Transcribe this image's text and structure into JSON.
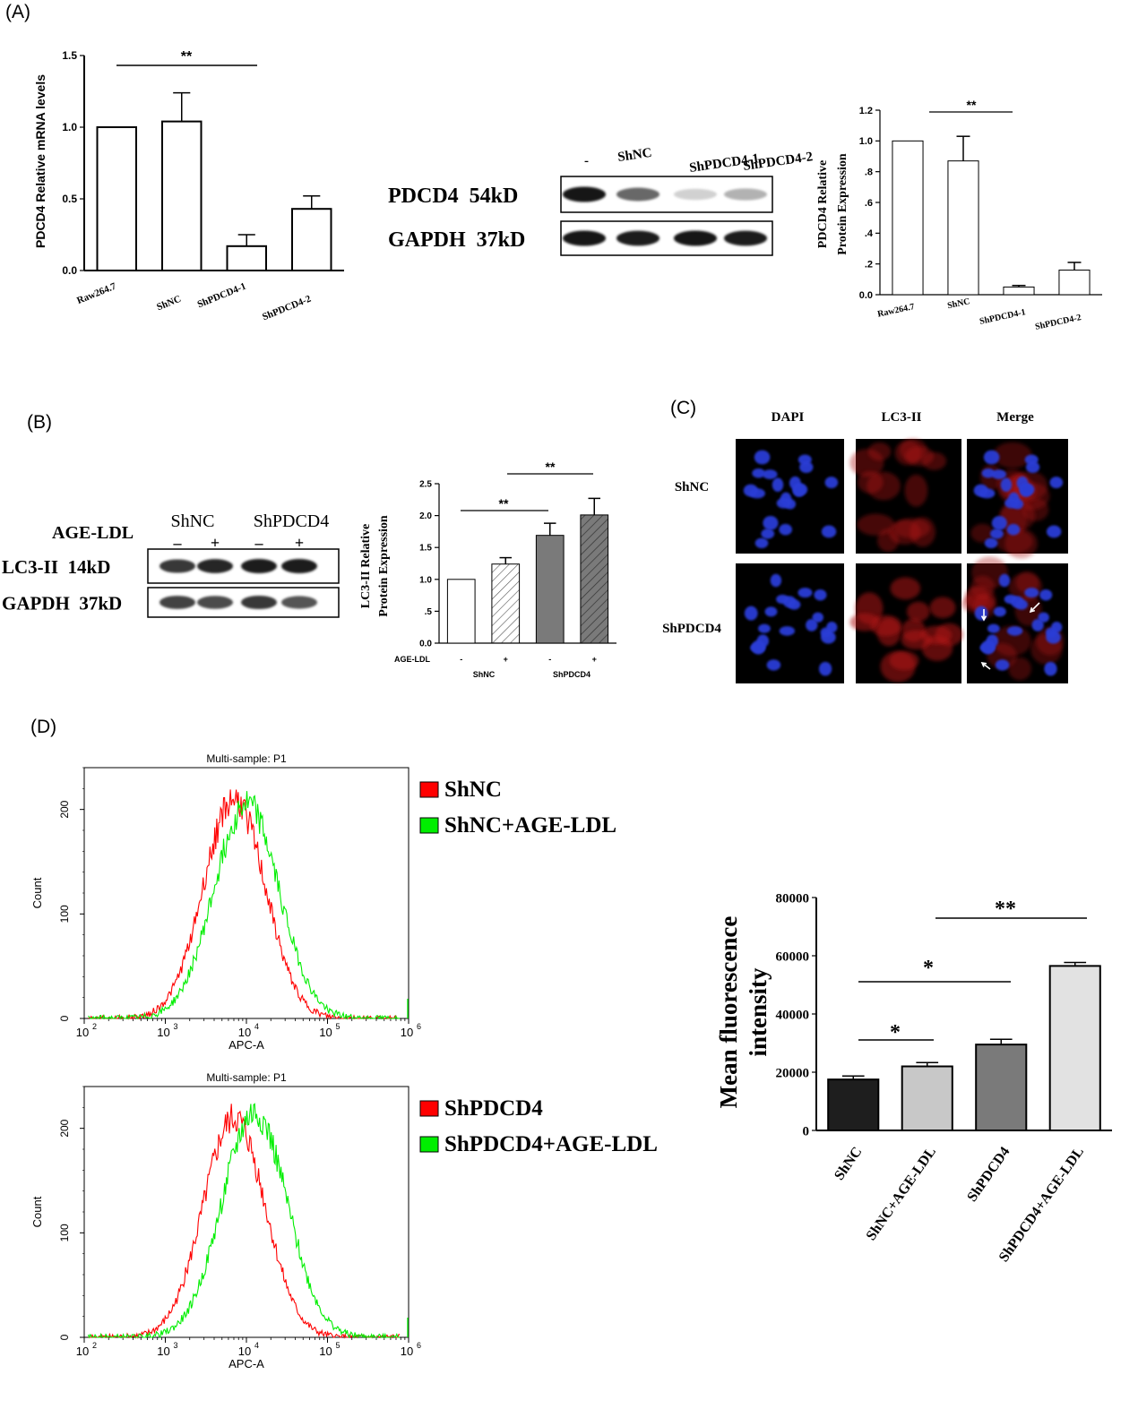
{
  "panels": {
    "A": "(A)",
    "B": "(B)",
    "C": "(C)",
    "D": "(D)"
  },
  "colors": {
    "flow_red": "#ff0000",
    "flow_green": "#00ee00",
    "dapi_blue": "#2a3cd6",
    "lc3_red": "#b01818",
    "bar_dark": "#1e1e1e",
    "bar_light": "#c8c8c8",
    "bar_mid": "#7a7a7a",
    "bar_lightest": "#e2e2e2"
  },
  "blotA": {
    "lanes": [
      "-",
      "ShNC",
      "ShPDCD4-1",
      "ShPDCD4-2"
    ],
    "rows": [
      {
        "label": "PDCD4  54kD",
        "intensity": [
          1.0,
          0.6,
          0.1,
          0.25
        ]
      },
      {
        "label": "GAPDH  37kD",
        "intensity": [
          1.0,
          0.95,
          1.0,
          0.95
        ]
      }
    ]
  },
  "blotB": {
    "treatment_label": "AGE-LDL",
    "groups": [
      "ShNC",
      "ShPDCD4"
    ],
    "signs": [
      "–",
      "+",
      "–",
      "+"
    ],
    "rows": [
      {
        "label": "LC3-II  14kD",
        "intensity": [
          0.85,
          0.95,
          1.0,
          1.0
        ]
      },
      {
        "label": "GAPDH  37kD",
        "intensity": [
          0.8,
          0.75,
          0.85,
          0.7
        ]
      }
    ]
  },
  "micro": {
    "columns": [
      "DAPI",
      "LC3-II",
      "Merge"
    ],
    "rows": [
      "ShNC",
      "ShPDCD4"
    ]
  },
  "flow": {
    "legend1": [
      "ShNC",
      "ShNC+AGE-LDL"
    ],
    "legend2": [
      "ShPDCD4",
      "ShPDCD4+AGE-LDL"
    ]
  },
  "chart_data": [
    {
      "type": "bar",
      "categories": [
        "Raw264.7",
        "ShNC",
        "ShPDCD4-1",
        "ShPDCD4-2"
      ],
      "values": [
        1.0,
        1.04,
        0.17,
        0.43
      ],
      "errors": [
        0,
        0.2,
        0.08,
        0.09
      ],
      "ylabel": "PDCD4  Relative mRNA levels",
      "ylim": [
        0,
        1.5
      ],
      "yticks": [
        "0.0",
        "0.5",
        "1.0",
        "1.5"
      ],
      "sig": "**"
    },
    {
      "type": "bar",
      "categories": [
        "Raw264.7",
        "ShNC",
        "ShPDCD4-1",
        "ShPDCD4-2"
      ],
      "values": [
        1.0,
        0.87,
        0.05,
        0.16
      ],
      "errors": [
        0,
        0.16,
        0.01,
        0.05
      ],
      "ylabel": [
        "PDCD4 Relative",
        "Protein Expression"
      ],
      "ylim": [
        0,
        1.2
      ],
      "yticks": [
        "0.0",
        ".2",
        ".4",
        ".6",
        ".8",
        "1.0",
        "1.2"
      ],
      "sig": "**"
    },
    {
      "type": "bar",
      "categories": [
        "-",
        "+",
        "-",
        "+"
      ],
      "groups": [
        "ShNC",
        "ShPDCD4"
      ],
      "xlabel": "AGE-LDL",
      "values": [
        1.0,
        1.24,
        1.69,
        2.01
      ],
      "errors": [
        0,
        0.1,
        0.19,
        0.26
      ],
      "ylabel": [
        "LC3-II Relative",
        "Protein Expression"
      ],
      "ylim": [
        0,
        2.5
      ],
      "yticks": [
        "0.0",
        ".5",
        "1.0",
        "1.5",
        "2.0",
        "2.5"
      ],
      "sig": [
        "**",
        "**"
      ]
    },
    {
      "type": "line",
      "title": "Multi-sample: P1",
      "xlabel": "APC-A",
      "ylabel": "Count",
      "xscale": "log",
      "xticks": [
        "2",
        "3",
        "4",
        "5",
        "6"
      ],
      "yticks": [
        "0",
        "100",
        "200"
      ],
      "series": [
        {
          "name": "ShNC",
          "peak_log10": 3.85,
          "sd": 0.38,
          "height": 210
        },
        {
          "name": "ShNC+AGE-LDL",
          "peak_log10": 4.0,
          "sd": 0.4,
          "height": 205
        }
      ]
    },
    {
      "type": "line",
      "title": "Multi-sample: P1",
      "xlabel": "APC-A",
      "ylabel": "Count",
      "xscale": "log",
      "xticks": [
        "2",
        "3",
        "4",
        "5",
        "6"
      ],
      "yticks": [
        "0",
        "100",
        "200"
      ],
      "series": [
        {
          "name": "ShPDCD4",
          "peak_log10": 3.85,
          "sd": 0.38,
          "height": 210
        },
        {
          "name": "ShPDCD4+AGE-LDL",
          "peak_log10": 4.1,
          "sd": 0.4,
          "height": 215
        }
      ]
    },
    {
      "type": "bar",
      "categories": [
        "ShNC",
        "ShNC+AGE-LDL",
        "ShPDCD4",
        "ShPDCD4+AGE-LDL"
      ],
      "values": [
        17500,
        22000,
        29500,
        56500
      ],
      "errors": [
        1200,
        1300,
        1800,
        1200
      ],
      "ylabel": [
        "Mean fluorescence",
        "intensity"
      ],
      "ylim": [
        0,
        80000
      ],
      "yticks": [
        "0",
        "20000",
        "40000",
        "60000",
        "80000"
      ],
      "sig": [
        "*",
        "*",
        "**"
      ]
    }
  ]
}
